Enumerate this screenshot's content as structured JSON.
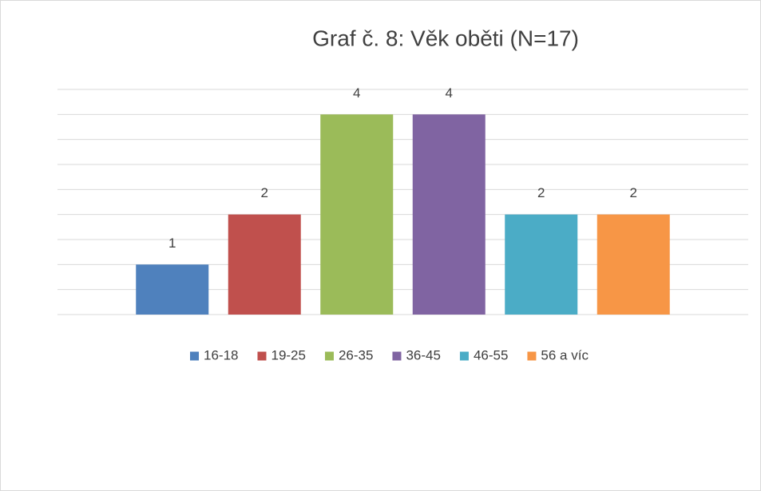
{
  "chart_data": {
    "type": "bar",
    "title": "Graf č. 8: Věk oběti (N=17)",
    "categories": [
      null
    ],
    "series": [
      {
        "name": "16-18",
        "color": "#4f81bd",
        "values": [
          1
        ]
      },
      {
        "name": "19-25",
        "color": "#c0504d",
        "values": [
          2
        ]
      },
      {
        "name": "26-35",
        "color": "#9bbb59",
        "values": [
          4
        ]
      },
      {
        "name": "36-45",
        "color": "#8064a2",
        "values": [
          4
        ]
      },
      {
        "name": "46-55",
        "color": "#4bacc6",
        "values": [
          2
        ]
      },
      {
        "name": "56 a víc",
        "color": "#f79646",
        "values": [
          2
        ]
      }
    ],
    "ylim": [
      0,
      4.5
    ],
    "yticks": [
      0,
      0.5,
      1,
      1.5,
      2,
      2.5,
      3,
      3.5,
      4,
      4.5
    ],
    "grid": true,
    "legend": "bottom"
  }
}
